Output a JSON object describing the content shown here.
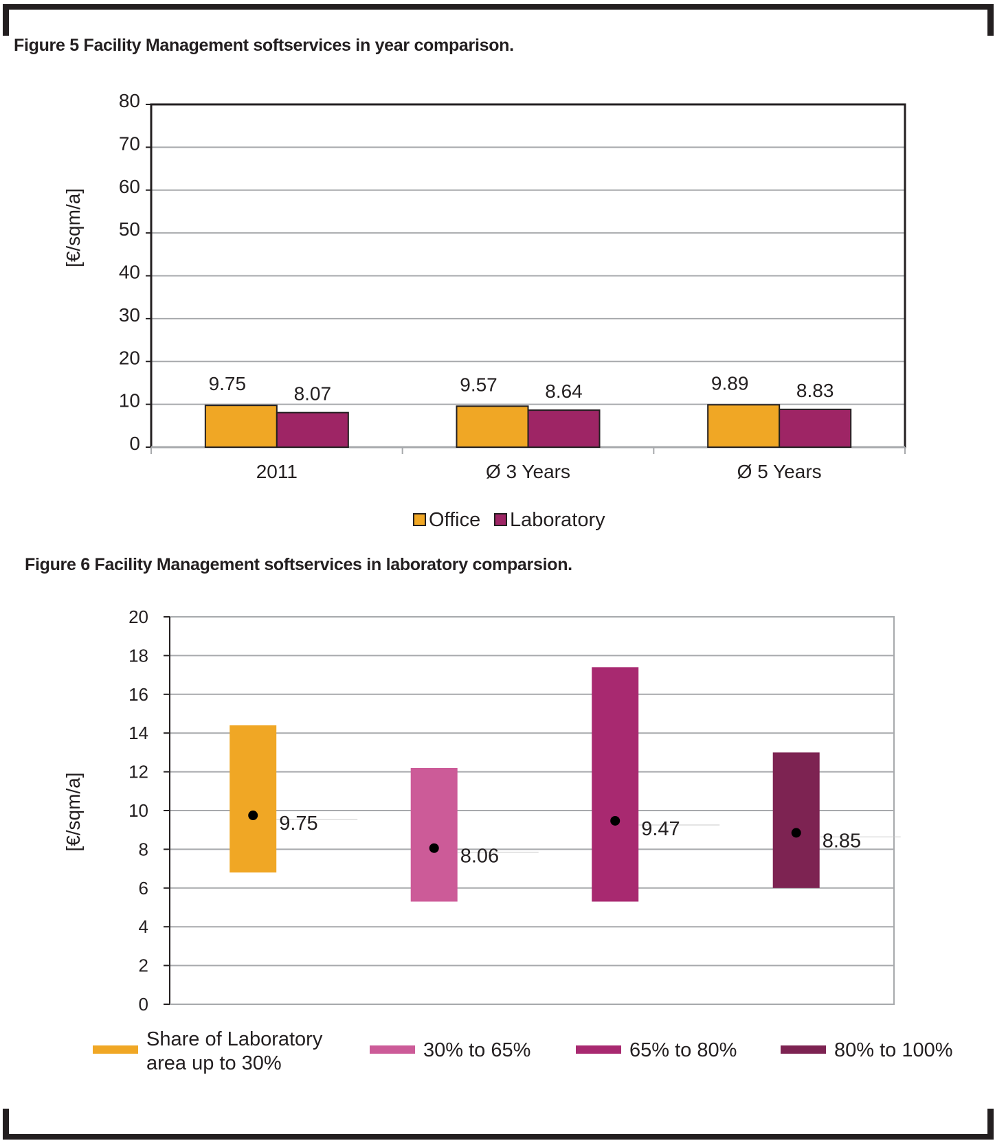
{
  "figure5": {
    "title": "Figure 5 Facility Management softservices in year comparison.",
    "chart_data": {
      "type": "bar",
      "ylabel": "[€/sqm/a]",
      "ylim": [
        0,
        80
      ],
      "yticks": [
        "0",
        "10",
        "20",
        "30",
        "40",
        "50",
        "60",
        "70",
        "80"
      ],
      "categories": [
        "2011",
        "Ø 3 Years",
        "Ø 5 Years"
      ],
      "series": [
        {
          "name": "Office",
          "color": "#f0a725",
          "values": [
            9.75,
            9.57,
            9.89
          ],
          "labels": [
            "9.75",
            "9.57",
            "9.89"
          ]
        },
        {
          "name": "Laboratory",
          "color": "#9e2565",
          "values": [
            8.07,
            8.64,
            8.83
          ],
          "labels": [
            "8.07",
            "8.64",
            "8.83"
          ]
        }
      ],
      "grid": true,
      "legend": "bottom-center"
    }
  },
  "figure6": {
    "title": "Figure 6 Facility Management softservices in laboratory comparsion.",
    "chart_data": {
      "type": "range-bar",
      "ylabel": "[€/sqm/a]",
      "ylim": [
        0,
        20
      ],
      "yticks": [
        "0",
        "2",
        "4",
        "6",
        "8",
        "10",
        "12",
        "14",
        "16",
        "18",
        "20"
      ],
      "series": [
        {
          "name": "Share of Laboratory area up to 30%",
          "legend_lines": [
            "Share of Laboratory",
            "area up to 30%"
          ],
          "color": "#f0a725",
          "min": 6.8,
          "max": 14.4,
          "mean": 9.75,
          "label": "9.75"
        },
        {
          "name": "30% to 65%",
          "legend_lines": [
            "30% to 65%"
          ],
          "color": "#cc5b98",
          "min": 5.3,
          "max": 12.2,
          "mean": 8.06,
          "label": "8.06"
        },
        {
          "name": "65% to 80%",
          "legend_lines": [
            "65% to 80%"
          ],
          "color": "#a82970",
          "min": 5.3,
          "max": 17.4,
          "mean": 9.47,
          "label": "9.47"
        },
        {
          "name": "80% to 100%",
          "legend_lines": [
            "80% to 100%"
          ],
          "color": "#7d2352",
          "min": 6.0,
          "max": 13.0,
          "mean": 8.85,
          "label": "8.85"
        }
      ],
      "grid": true,
      "legend": "bottom"
    }
  }
}
